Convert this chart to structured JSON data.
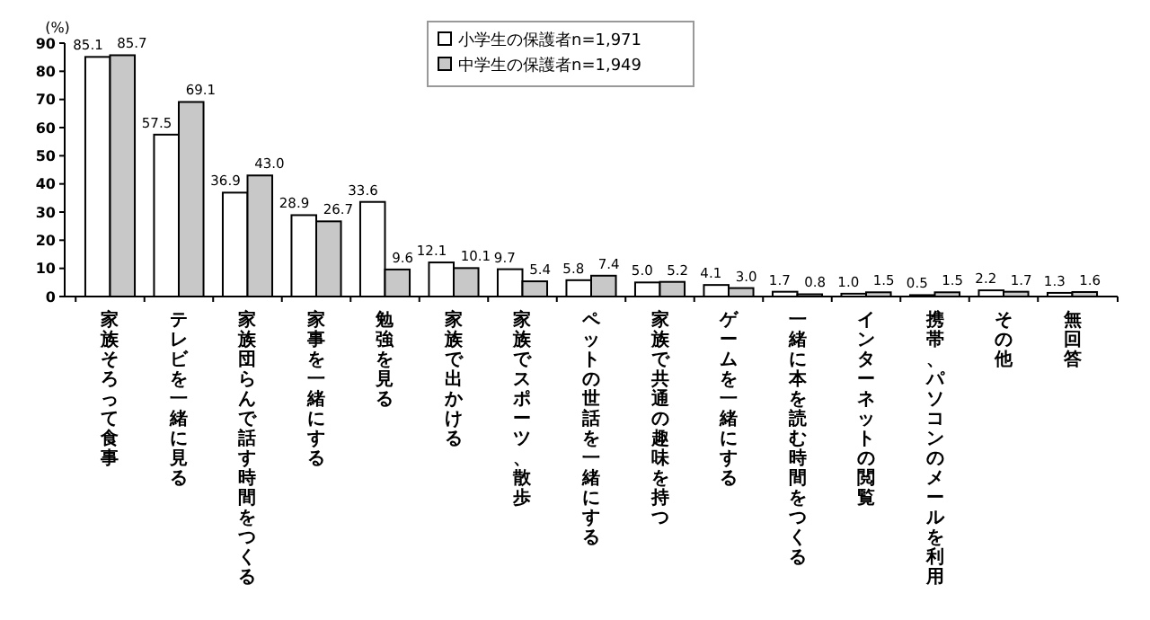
{
  "chart_data": {
    "type": "bar",
    "ylabel": "(%)",
    "categories": [
      "家族そろって食事",
      "テレビを一緒に見る",
      "家族団らんで話す時間をつくる",
      "家事を一緒にする",
      "勉強を見る",
      "家族で出かける",
      "家族でスポーツ、散歩",
      "ペットの世話を一緒にする",
      "家族で共通の趣味を持つ",
      "ゲームを一緒にする",
      "一緒に本を読む時間をつくる",
      "インターネットの閲覧",
      "携帯、パソコンのメールを利用",
      "その他",
      "無回答"
    ],
    "series": [
      {
        "name": "小学生の保護者n=1,971",
        "color": "#ffffff",
        "values": [
          85.1,
          57.5,
          36.9,
          28.9,
          33.6,
          12.1,
          9.7,
          5.8,
          5.0,
          4.1,
          1.7,
          1.0,
          0.5,
          2.2,
          1.3
        ],
        "value_labels": [
          "85.1",
          "57.5",
          "36.9",
          "28.9",
          "33.6",
          "12.1",
          "9.7",
          "5.8",
          "5.0",
          "4.1",
          "1.7",
          "1.0",
          "0.5",
          "2.2",
          "1.3"
        ]
      },
      {
        "name": "中学生の保護者n=1,949",
        "color": "#c8c8c8",
        "values": [
          85.7,
          69.1,
          43.0,
          26.7,
          9.6,
          10.1,
          5.4,
          7.4,
          5.2,
          3.0,
          0.8,
          1.5,
          1.5,
          1.7,
          1.6
        ],
        "value_labels": [
          "85.7",
          "69.1",
          "43.0",
          "26.7",
          "9.6",
          "10.1",
          "5.4",
          "7.4",
          "5.2",
          "3.0",
          "0.8",
          "1.5",
          "1.5",
          "1.7",
          "1.6"
        ]
      }
    ],
    "ylim": [
      0,
      90
    ],
    "yticks": [
      0,
      10,
      20,
      30,
      40,
      50,
      60,
      70,
      80,
      90
    ],
    "grid": false,
    "legend": "top"
  }
}
